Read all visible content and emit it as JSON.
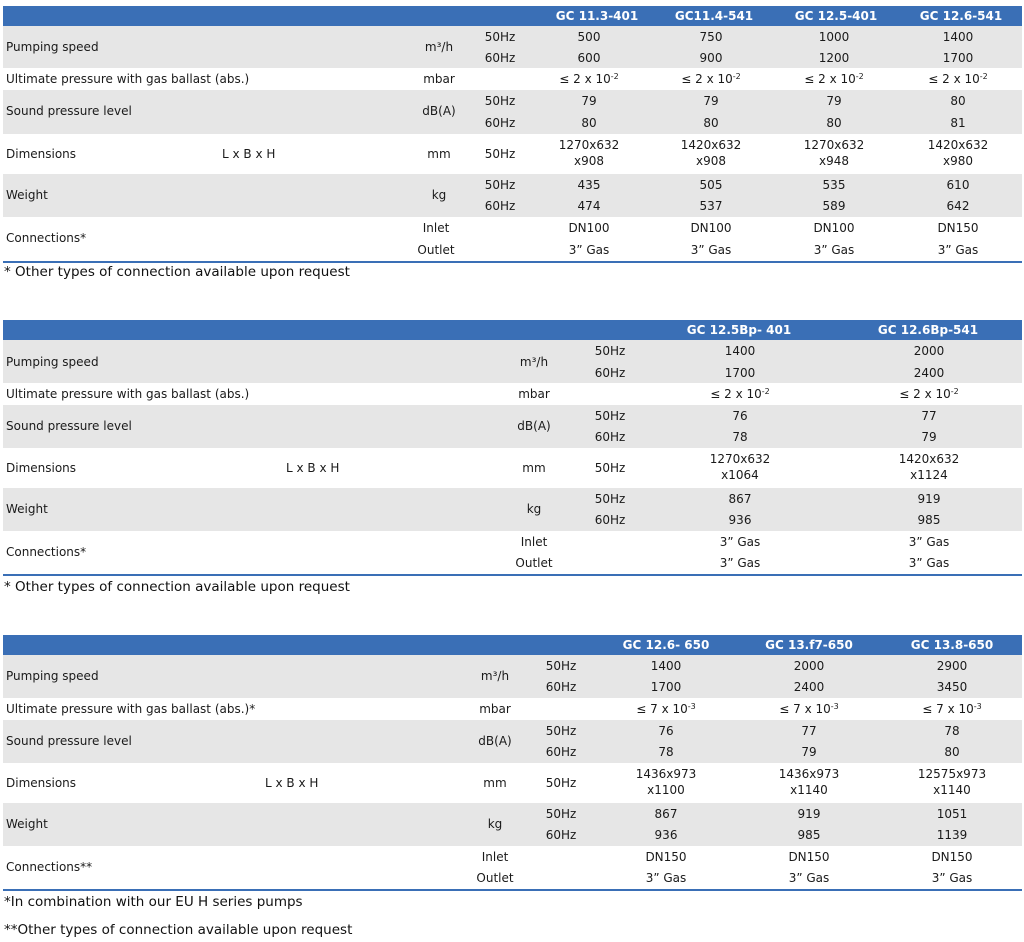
{
  "table1": {
    "models": [
      "GC 11.3-401",
      "GC11.4-541",
      "GC 12.5-401",
      "GC 12.6-541"
    ],
    "pumping_speed": {
      "label": "Pumping speed",
      "unit": "m³/h",
      "hz": [
        "50Hz",
        "60Hz"
      ],
      "values": [
        [
          "500",
          "750",
          "1000",
          "1400"
        ],
        [
          "600",
          "900",
          "1200",
          "1700"
        ]
      ]
    },
    "ultimate_pressure": {
      "label": "Ultimate pressure with gas ballast (abs.)",
      "unit": "mbar",
      "values": [
        "≤ 2 x 10",
        "≤ 2 x 10",
        "≤ 2 x 10",
        "≤ 2 x 10"
      ],
      "exp": "-2"
    },
    "sound": {
      "label": "Sound pressure level",
      "unit": "dB(A)",
      "hz": [
        "50Hz",
        "60Hz"
      ],
      "values": [
        [
          "79",
          "79",
          "79",
          "80"
        ],
        [
          "80",
          "80",
          "80",
          "81"
        ]
      ]
    },
    "dimensions": {
      "label": "Dimensions",
      "sub": "L x B x H",
      "unit": "mm",
      "hz": "50Hz",
      "line1": [
        "1270x632",
        "1420x632",
        "1270x632",
        "1420x632"
      ],
      "line2": [
        "x908",
        "x908",
        "x948",
        "x980"
      ]
    },
    "weight": {
      "label": "Weight",
      "unit": "kg",
      "hz": [
        "50Hz",
        "60Hz"
      ],
      "values": [
        [
          "435",
          "505",
          "535",
          "610"
        ],
        [
          "474",
          "537",
          "589",
          "642"
        ]
      ]
    },
    "connections": {
      "label": "Connections*",
      "inlet": "Inlet",
      "outlet": "Outlet",
      "inlet_values": [
        "DN100",
        "DN100",
        "DN100",
        "DN150"
      ],
      "outlet_values": [
        "3” Gas",
        "3” Gas",
        "3” Gas",
        "3” Gas"
      ]
    },
    "note": "* Other types of connection available upon request"
  },
  "table2": {
    "models": [
      "GC 12.5Bp- 401",
      "GC 12.6Bp-541"
    ],
    "pumping_speed": {
      "label": "Pumping speed",
      "unit": "m³/h",
      "hz": [
        "50Hz",
        "60Hz"
      ],
      "values": [
        [
          "1400",
          "2000"
        ],
        [
          "1700",
          "2400"
        ]
      ]
    },
    "ultimate_pressure": {
      "label": "Ultimate pressure with gas ballast (abs.)",
      "unit": "mbar",
      "values": [
        "≤ 2 x 10",
        "≤ 2 x 10"
      ],
      "exp": "-2"
    },
    "sound": {
      "label": "Sound pressure level",
      "unit": "dB(A)",
      "hz": [
        "50Hz",
        "60Hz"
      ],
      "values": [
        [
          "76",
          "77"
        ],
        [
          "78",
          "79"
        ]
      ]
    },
    "dimensions": {
      "label": "Dimensions",
      "sub": "L x B x H",
      "unit": "mm",
      "hz": "50Hz",
      "line1": [
        "1270x632",
        "1420x632"
      ],
      "line2": [
        "x1064",
        "x1124"
      ]
    },
    "weight": {
      "label": "Weight",
      "unit": "kg",
      "hz": [
        "50Hz",
        "60Hz"
      ],
      "values": [
        [
          "867",
          "919"
        ],
        [
          "936",
          "985"
        ]
      ]
    },
    "connections": {
      "label": "Connections*",
      "inlet": "Inlet",
      "outlet": "Outlet",
      "inlet_values": [
        "3” Gas",
        "3” Gas"
      ],
      "outlet_values": [
        "3” Gas",
        "3” Gas"
      ]
    },
    "note": "* Other types of connection available upon request"
  },
  "table3": {
    "models": [
      "GC 12.6- 650",
      "GC 13.f7-650",
      "GC 13.8-650"
    ],
    "pumping_speed": {
      "label": "Pumping speed",
      "unit": "m³/h",
      "hz": [
        "50Hz",
        "60Hz"
      ],
      "values": [
        [
          "1400",
          "2000",
          "2900"
        ],
        [
          "1700",
          "2400",
          "3450"
        ]
      ]
    },
    "ultimate_pressure": {
      "label": "Ultimate pressure with gas ballast (abs.)*",
      "unit": "mbar",
      "values": [
        "≤ 7 x 10",
        "≤ 7 x 10",
        "≤ 7 x 10"
      ],
      "exp": "-3"
    },
    "sound": {
      "label": "Sound pressure level",
      "unit": "dB(A)",
      "hz": [
        "50Hz",
        "60Hz"
      ],
      "values": [
        [
          "76",
          "77",
          "78"
        ],
        [
          "78",
          "79",
          "80"
        ]
      ]
    },
    "dimensions": {
      "label": "Dimensions",
      "sub": "L x B x H",
      "unit": "mm",
      "hz": "50Hz",
      "line1": [
        "1436x973",
        "1436x973",
        "12575x973"
      ],
      "line2": [
        "x1100",
        "x1140",
        "x1140"
      ]
    },
    "weight": {
      "label": "Weight",
      "unit": "kg",
      "hz": [
        "50Hz",
        "60Hz"
      ],
      "values": [
        [
          "867",
          "919",
          "1051"
        ],
        [
          "936",
          "985",
          "1139"
        ]
      ]
    },
    "connections": {
      "label": "Connections**",
      "inlet": "Inlet",
      "outlet": "Outlet",
      "inlet_values": [
        "DN150",
        "DN150",
        "DN150"
      ],
      "outlet_values": [
        "3” Gas",
        "3” Gas",
        "3” Gas"
      ]
    },
    "note1": "*In combination with our EU H series pumps",
    "note2": "**Other types of connection available upon request"
  }
}
